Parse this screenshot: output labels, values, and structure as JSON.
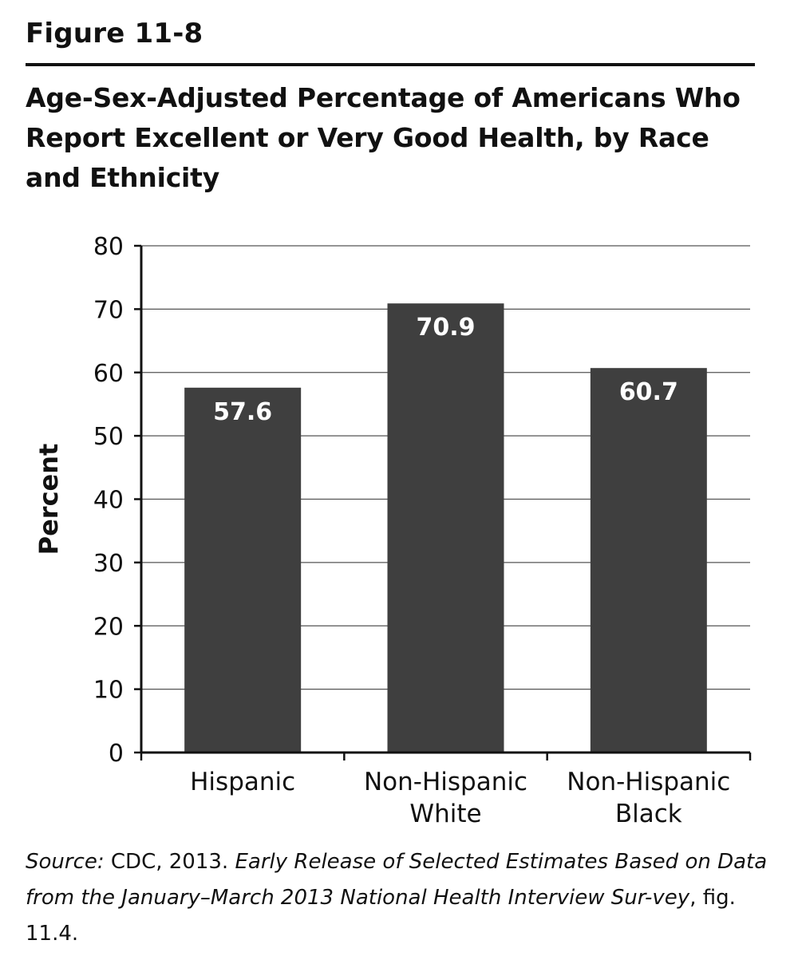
{
  "figure_label": "Figure 11-8",
  "source": {
    "lead": "Source:",
    "part1": " CDC, 2013. ",
    "title_italic": "Early Release of Selected Estimates Based on Data from the January–March 2013 National Health Interview Sur-vey",
    "part2": ", fig. 11.4."
  },
  "chart_data": {
    "type": "bar",
    "title": "Age-Sex-Adjusted Percentage of Americans Who Report Excellent or Very Good Health, by Race and Ethnicity",
    "ylabel": "Percent",
    "xlabel": "",
    "ylim": [
      0,
      80
    ],
    "yticks": [
      0,
      10,
      20,
      30,
      40,
      50,
      60,
      70,
      80
    ],
    "grid": true,
    "categories": [
      [
        "Hispanic"
      ],
      [
        "Non-Hispanic",
        "White"
      ],
      [
        "Non-Hispanic",
        "Black"
      ]
    ],
    "values": [
      57.6,
      70.9,
      60.7
    ],
    "data_labels": [
      "57.6",
      "70.9",
      "60.7"
    ],
    "bar_color": "#3f3f3f",
    "label_color": "#ffffff"
  }
}
